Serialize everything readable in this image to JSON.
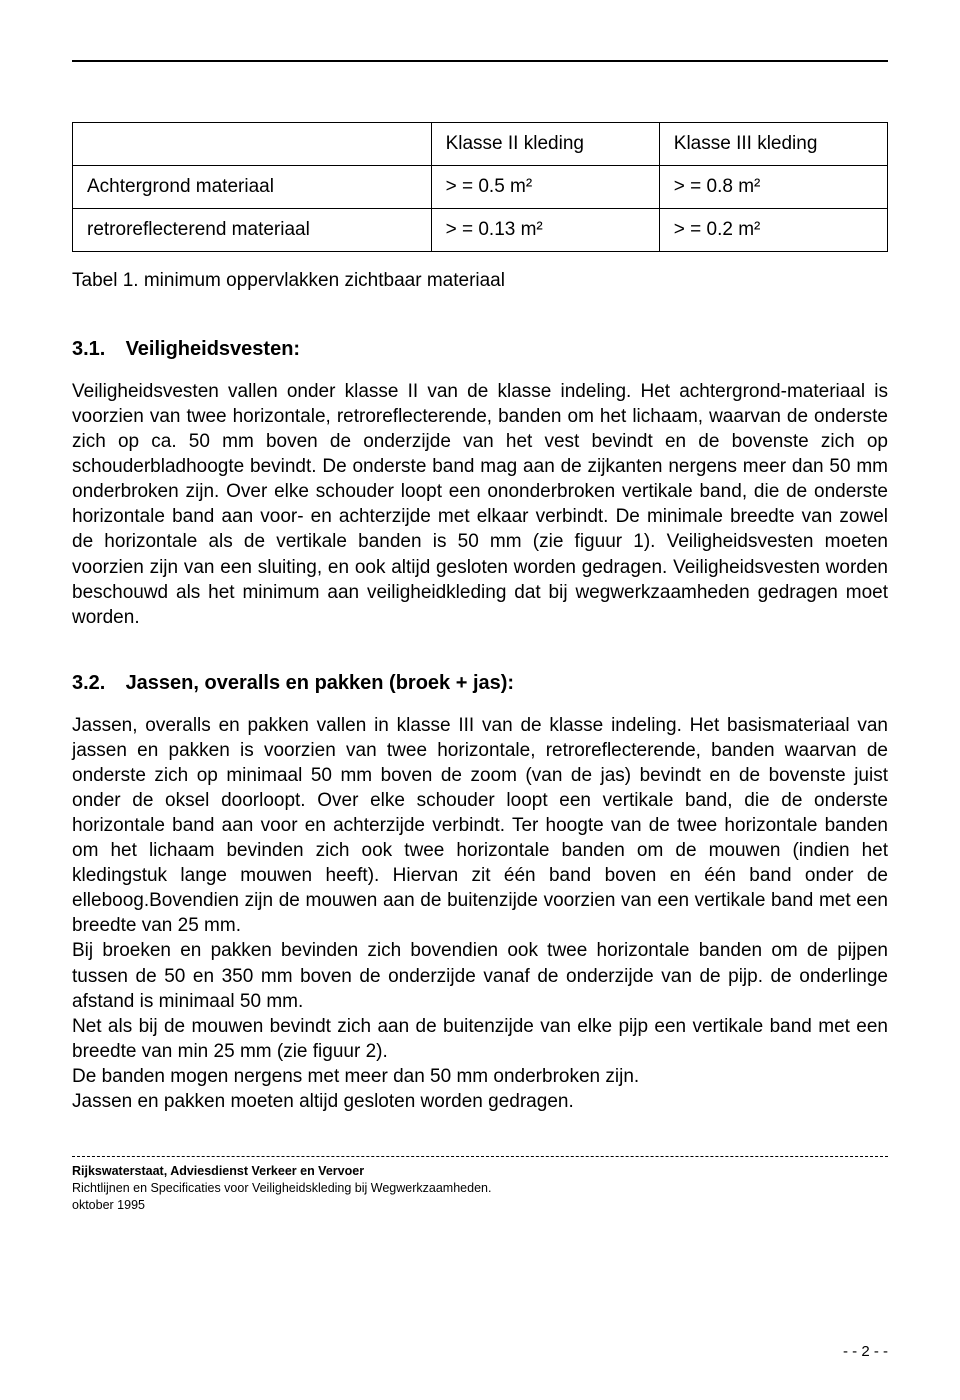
{
  "table": {
    "header_empty": "",
    "col1_header": "Klasse II kleding",
    "col2_header": "Klasse III kleding",
    "row1_label": "Achtergrond materiaal",
    "row1_c1": "> = 0.5 m²",
    "row1_c2": "> = 0.8 m²",
    "row2_label": "retroreflecterend materiaal",
    "row2_c1": "> = 0.13 m²",
    "row2_c2": "> = 0.2 m²",
    "caption": "Tabel 1. minimum oppervlakken zichtbaar materiaal"
  },
  "sec31": {
    "num": "3.1.",
    "title": "Veiligheidsvesten:",
    "body": "Veiligheidsvesten vallen onder klasse II van de klasse indeling. Het achtergrond-materiaal is voorzien van twee horizontale, retroreflecterende, banden om het lichaam, waarvan de onderste zich op ca. 50 mm boven de onderzijde van het vest bevindt en de bovenste zich op schouderbladhoogte bevindt. De onderste band mag aan de zijkanten nergens meer dan 50 mm onderbroken zijn. Over elke schouder loopt een ononderbroken vertikale band, die de onderste horizontale band aan voor- en achterzijde met elkaar verbindt. De minimale breedte van zowel de horizontale als de vertikale banden is 50 mm (zie figuur 1). Veiligheidsvesten moeten voorzien zijn van een sluiting, en ook altijd gesloten worden gedragen. Veiligheidsvesten worden beschouwd als het minimum aan veiligheidkleding dat bij wegwerkzaamheden gedragen moet worden."
  },
  "sec32": {
    "num": "3.2.",
    "title": "Jassen, overalls en pakken (broek + jas):",
    "body": "Jassen, overalls en pakken vallen in klasse III van de klasse indeling. Het basismateriaal van jassen en pakken is voorzien van twee horizontale, retroreflecterende, banden waarvan de onderste zich op minimaal 50 mm boven de zoom (van de jas) bevindt en de bovenste juist onder de oksel doorloopt. Over elke schouder loopt een vertikale band, die de onderste horizontale band aan voor en achterzijde verbindt. Ter hoogte van de twee horizontale banden om het lichaam bevinden zich ook twee horizontale banden om de mouwen (indien het kledingstuk lange mouwen heeft). Hiervan zit één band boven en één band onder de elleboog.Bovendien zijn de mouwen aan de buitenzijde voorzien van een vertikale band met een breedte van 25 mm.\nBij broeken en pakken bevinden zich bovendien ook twee horizontale banden om de pijpen tussen de 50 en 350 mm boven de onderzijde vanaf de onderzijde van de pijp. de onderlinge afstand is minimaal 50 mm.\nNet als bij de mouwen bevindt zich aan de buitenzijde van elke pijp een vertikale band met een breedte van min 25 mm (zie figuur 2).\nDe banden mogen nergens met meer dan 50 mm onderbroken zijn.\nJassen en pakken moeten altijd gesloten worden gedragen."
  },
  "footer": {
    "line1": "Rijkswaterstaat, Adviesdienst Verkeer en Vervoer",
    "line2": "Richtlijnen en Specificaties voor Veiligheidskleding bij Wegwerkzaamheden.",
    "line3": "oktober 1995",
    "page": "- - 2 - -"
  }
}
